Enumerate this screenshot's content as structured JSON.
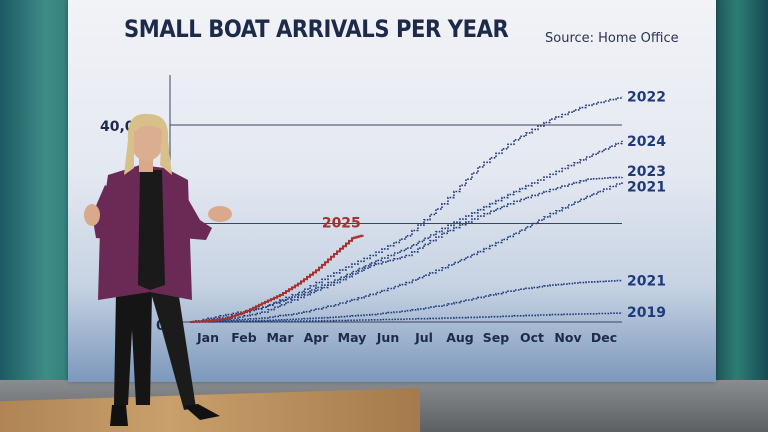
{
  "colors": {
    "accent_2025": "#a8312d",
    "series_blue": "#1f3a7a",
    "axis_text": "#1e2a4a"
  },
  "header": {
    "title": "SMALL BOAT ARRIVALS PER YEAR",
    "source": "Source: Home Office"
  },
  "chart_data": {
    "type": "line",
    "title": "SMALL BOAT ARRIVALS PER YEAR",
    "source": "Source: Home Office",
    "x_labels": [
      "Jan",
      "Feb",
      "Mar",
      "Apr",
      "May",
      "Jun",
      "Jul",
      "Aug",
      "Sep",
      "Oct",
      "Nov",
      "Dec"
    ],
    "y_tick_labels": [
      "0",
      "40,000"
    ],
    "ylim": [
      0,
      50000
    ],
    "grid": true,
    "series": [
      {
        "name": "2022",
        "color": "#1f3a7a",
        "dotted": true,
        "x": [
          0,
          1,
          2,
          3,
          4,
          5,
          6,
          7,
          8,
          9,
          10,
          11,
          12
        ],
        "y": [
          0,
          1500,
          3000,
          6000,
          10000,
          13500,
          17500,
          24000,
          31500,
          37000,
          41200,
          44000,
          45750
        ]
      },
      {
        "name": "2024",
        "color": "#1f3a7a",
        "dotted": true,
        "x": [
          0,
          1,
          2,
          3,
          4,
          5,
          6,
          7,
          8,
          9,
          10,
          11,
          12
        ],
        "y": [
          0,
          1000,
          3000,
          5500,
          8500,
          12000,
          15000,
          19000,
          22800,
          26500,
          30000,
          33500,
          36800
        ]
      },
      {
        "name": "2023",
        "color": "#1f3a7a",
        "dotted": true,
        "x": [
          0,
          1,
          2,
          3,
          4,
          5,
          6,
          7,
          8,
          9,
          10,
          11,
          12
        ],
        "y": [
          0,
          500,
          2000,
          5000,
          8000,
          11500,
          13500,
          18000,
          21500,
          24500,
          26900,
          29000,
          29437
        ]
      },
      {
        "name": "2021",
        "color": "#1f3a7a",
        "dotted": true,
        "x": [
          0,
          1,
          2,
          3,
          4,
          5,
          6,
          7,
          8,
          9,
          10,
          11,
          12
        ],
        "y": [
          0,
          300,
          800,
          1800,
          3500,
          5600,
          8000,
          11000,
          14300,
          18000,
          22000,
          25500,
          28526
        ]
      },
      {
        "name": "2021",
        "color": "#1f3a7a",
        "dotted": true,
        "x": [
          0,
          1,
          2,
          3,
          4,
          5,
          6,
          7,
          8,
          9,
          10,
          11,
          12
        ],
        "y": [
          0,
          100,
          300,
          600,
          1000,
          1500,
          2300,
          3400,
          5000,
          6500,
          7500,
          8100,
          8466
        ]
      },
      {
        "name": "2019",
        "color": "#1f3a7a",
        "dotted": true,
        "x": [
          0,
          2,
          4,
          6,
          8,
          10,
          12
        ],
        "y": [
          0,
          100,
          300,
          600,
          1000,
          1500,
          1843
        ]
      },
      {
        "name": "2025",
        "color": "#a8312d",
        "dotted": false,
        "x": [
          0,
          0.5,
          1,
          1.5,
          2,
          2.5,
          3,
          3.5,
          4,
          4.5,
          4.8
        ],
        "y": [
          0,
          200,
          700,
          2000,
          3800,
          5500,
          7800,
          10500,
          13800,
          17000,
          17600
        ]
      }
    ]
  }
}
